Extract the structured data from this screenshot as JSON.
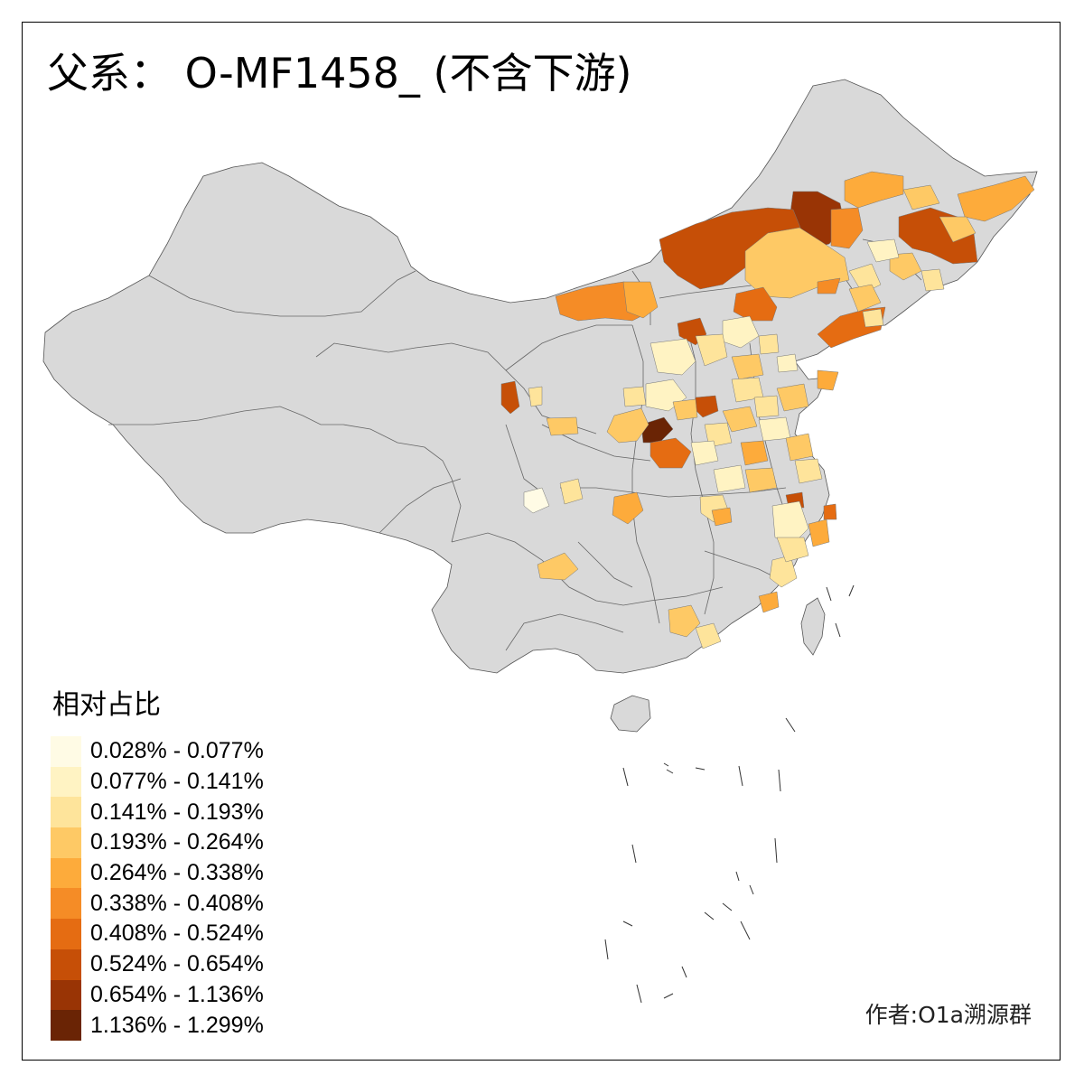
{
  "title": "父系： O-MF1458_ (不含下游)",
  "legend": {
    "title": "相对占比",
    "items": [
      {
        "label": "0.028% - 0.077%",
        "color": "#fffbe5"
      },
      {
        "label": "0.077% - 0.141%",
        "color": "#fff3c3"
      },
      {
        "label": "0.141% - 0.193%",
        "color": "#fee49b"
      },
      {
        "label": "0.193% - 0.264%",
        "color": "#fec965"
      },
      {
        "label": "0.264% - 0.338%",
        "color": "#fdab3b"
      },
      {
        "label": "0.338% - 0.408%",
        "color": "#f58c26"
      },
      {
        "label": "0.408% - 0.524%",
        "color": "#e56c12"
      },
      {
        "label": "0.524% - 0.654%",
        "color": "#c64f07"
      },
      {
        "label": "0.654% - 1.136%",
        "color": "#993405"
      },
      {
        "label": "1.136% - 1.299%",
        "color": "#6a2405"
      }
    ]
  },
  "author": "作者:O1a溯源群",
  "colors": {
    "base_region": "#d9d9d9",
    "border": "#555555",
    "frame": "#000000"
  }
}
